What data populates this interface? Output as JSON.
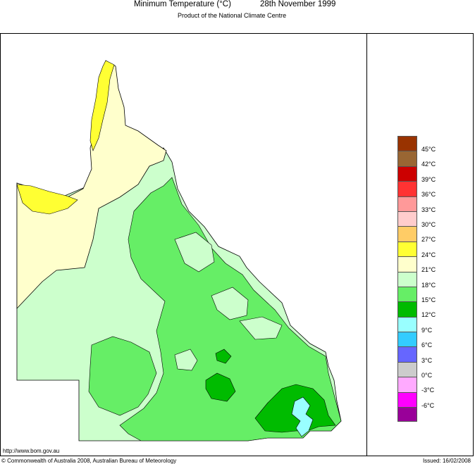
{
  "header": {
    "title": "Minimum Temperature (°C)",
    "date": "28th November 1999",
    "subtitle": "Product of the National Climate Centre"
  },
  "legend": {
    "items": [
      {
        "label": "",
        "color": "#993300"
      },
      {
        "label": "45°C",
        "color": "#996633"
      },
      {
        "label": "42°C",
        "color": "#cc0000"
      },
      {
        "label": "39°C",
        "color": "#ff3333"
      },
      {
        "label": "36°C",
        "color": "#ff9999"
      },
      {
        "label": "33°C",
        "color": "#ffcccc"
      },
      {
        "label": "30°C",
        "color": "#ffcc66"
      },
      {
        "label": "27°C",
        "color": "#ffff33"
      },
      {
        "label": "24°C",
        "color": "#ffffcc"
      },
      {
        "label": "21°C",
        "color": "#ccffcc"
      },
      {
        "label": "18°C",
        "color": "#66ee66"
      },
      {
        "label": "15°C",
        "color": "#00bb00"
      },
      {
        "label": "12°C",
        "color": "#99ffff"
      },
      {
        "label": "9°C",
        "color": "#33ccff"
      },
      {
        "label": "6°C",
        "color": "#6666ff"
      },
      {
        "label": "3°C",
        "color": "#cccccc"
      },
      {
        "label": "0°C",
        "color": "#ffaaff"
      },
      {
        "label": "-3°C",
        "color": "#ff00ff"
      },
      {
        "label": "-6°C",
        "color": "#990099"
      }
    ]
  },
  "footer": {
    "url": "http://www.bom.gov.au",
    "copyright": "© Commonwealth of Australia 2008, Australian Bureau of Meteorology",
    "issued": "Issued: 16/02/2008"
  }
}
